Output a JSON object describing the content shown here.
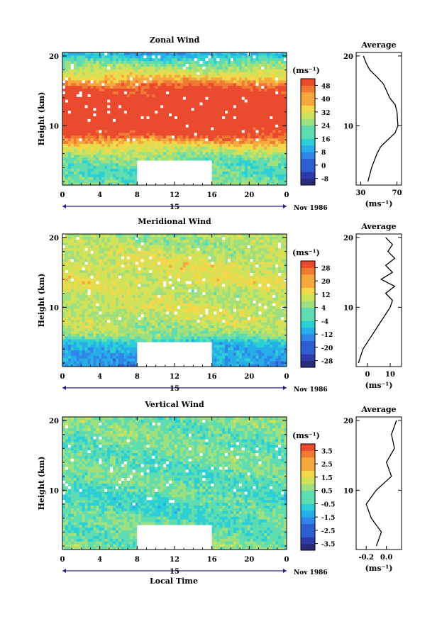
{
  "xlabel": "Local Time",
  "date_label": "Nov 1986",
  "day_label": "15",
  "colorbar_unit": "(ms⁻¹)",
  "avg_unit": "(ms⁻¹)",
  "chart_data": [
    {
      "type": "heatmap",
      "title": "Zonal Wind",
      "ylabel": "Height (km)",
      "x_ticks": [
        "0",
        "4",
        "8",
        "12",
        "16",
        "20",
        "0"
      ],
      "y_ticks": [
        "10",
        "20"
      ],
      "xlim": [
        0,
        24
      ],
      "ylim": [
        1.5,
        20.5
      ],
      "data_gap": {
        "x": [
          8,
          16
        ],
        "y": [
          1.5,
          5
        ]
      },
      "colorbar": {
        "ticks": [
          "-8",
          "0",
          "8",
          "16",
          "24",
          "32",
          "40",
          "48"
        ],
        "min": -12,
        "max": 52
      },
      "profile_rows_km": [
        {
          "h": 1.5,
          "v": 22
        },
        {
          "h": 3,
          "v": 20
        },
        {
          "h": 5,
          "v": 22
        },
        {
          "h": 6,
          "v": 26
        },
        {
          "h": 7,
          "v": 32
        },
        {
          "h": 8,
          "v": 42
        },
        {
          "h": 9,
          "v": 52
        },
        {
          "h": 12,
          "v": 56
        },
        {
          "h": 15,
          "v": 52
        },
        {
          "h": 16,
          "v": 44
        },
        {
          "h": 17,
          "v": 36
        },
        {
          "h": 18,
          "v": 28
        },
        {
          "h": 19,
          "v": 22
        },
        {
          "h": 20,
          "v": 14
        },
        {
          "h": 20.5,
          "v": 10
        }
      ],
      "average": {
        "title": "Average",
        "xlabel": "(ms⁻¹)",
        "x_ticks": [
          "30",
          "70"
        ],
        "xlim": [
          25,
          75
        ],
        "y_ticks": [
          "10",
          "20"
        ],
        "points": [
          [
            38,
            2
          ],
          [
            42,
            4
          ],
          [
            48,
            6
          ],
          [
            52,
            7
          ],
          [
            60,
            8
          ],
          [
            68,
            9
          ],
          [
            71,
            10
          ],
          [
            70,
            12
          ],
          [
            68,
            13
          ],
          [
            62,
            14
          ],
          [
            55,
            16
          ],
          [
            48,
            17
          ],
          [
            40,
            18
          ],
          [
            36,
            19
          ],
          [
            33,
            20
          ]
        ]
      }
    },
    {
      "type": "heatmap",
      "title": "Meridional Wind",
      "ylabel": "Height (km)",
      "x_ticks": [
        "0",
        "4",
        "8",
        "12",
        "16",
        "20",
        "0"
      ],
      "y_ticks": [
        "10",
        "20"
      ],
      "xlim": [
        0,
        24
      ],
      "ylim": [
        1.5,
        20.5
      ],
      "data_gap": {
        "x": [
          8,
          16
        ],
        "y": [
          1.5,
          5
        ]
      },
      "colorbar": {
        "ticks": [
          "-28",
          "-20",
          "-12",
          "-4",
          "4",
          "12",
          "20",
          "28"
        ],
        "min": -32,
        "max": 32
      },
      "profile_rows_km": [
        {
          "h": 1.5,
          "v": -14
        },
        {
          "h": 3,
          "v": -10
        },
        {
          "h": 5,
          "v": -6
        },
        {
          "h": 6,
          "v": 4
        },
        {
          "h": 8,
          "v": 8
        },
        {
          "h": 10,
          "v": 10
        },
        {
          "h": 12,
          "v": 8
        },
        {
          "h": 14,
          "v": 12
        },
        {
          "h": 15,
          "v": 10
        },
        {
          "h": 16,
          "v": 12
        },
        {
          "h": 18,
          "v": 8
        },
        {
          "h": 20,
          "v": 6
        }
      ],
      "average": {
        "title": "Average",
        "xlabel": "(ms⁻¹)",
        "x_ticks": [
          "0",
          "10"
        ],
        "xlim": [
          -5,
          15
        ],
        "y_ticks": [
          "10",
          "20"
        ],
        "points": [
          [
            -4,
            2
          ],
          [
            -2,
            4
          ],
          [
            2,
            6
          ],
          [
            6,
            8
          ],
          [
            10,
            10
          ],
          [
            11,
            11
          ],
          [
            8,
            12
          ],
          [
            12,
            13
          ],
          [
            6,
            14
          ],
          [
            11,
            15
          ],
          [
            8,
            16
          ],
          [
            12,
            17
          ],
          [
            9,
            18
          ],
          [
            11,
            19
          ],
          [
            8,
            20
          ]
        ]
      }
    },
    {
      "type": "heatmap",
      "title": "Vertical Wind",
      "ylabel": "Height (km)",
      "x_ticks": [
        "0",
        "4",
        "8",
        "12",
        "16",
        "20",
        "0"
      ],
      "y_ticks": [
        "10",
        "20"
      ],
      "xlim": [
        0,
        24
      ],
      "ylim": [
        1.5,
        20.5
      ],
      "data_gap": {
        "x": [
          8,
          16
        ],
        "y": [
          1.5,
          5
        ]
      },
      "colorbar": {
        "ticks": [
          "-3.5",
          "-2.5",
          "-1.5",
          "-0.5",
          "0.5",
          "1.5",
          "2.5",
          "3.5"
        ],
        "min": -4,
        "max": 4
      },
      "profile_rows_km": [
        {
          "h": 1.5,
          "v": 0.3
        },
        {
          "h": 5,
          "v": 0.1
        },
        {
          "h": 8,
          "v": -0.3
        },
        {
          "h": 10,
          "v": 0.0
        },
        {
          "h": 14,
          "v": 0.1
        },
        {
          "h": 18,
          "v": 0.2
        },
        {
          "h": 20,
          "v": 0.3
        }
      ],
      "average": {
        "title": "Average",
        "xlabel": "(ms⁻¹)",
        "x_ticks": [
          "-0.2",
          "0.0"
        ],
        "xlim": [
          -0.3,
          0.15
        ],
        "y_ticks": [
          "10",
          "20"
        ],
        "points": [
          [
            -0.1,
            2
          ],
          [
            -0.05,
            4
          ],
          [
            -0.15,
            6
          ],
          [
            -0.2,
            8
          ],
          [
            -0.1,
            10
          ],
          [
            0.05,
            12
          ],
          [
            0.0,
            14
          ],
          [
            0.08,
            16
          ],
          [
            0.05,
            18
          ],
          [
            0.1,
            20
          ]
        ]
      }
    }
  ]
}
